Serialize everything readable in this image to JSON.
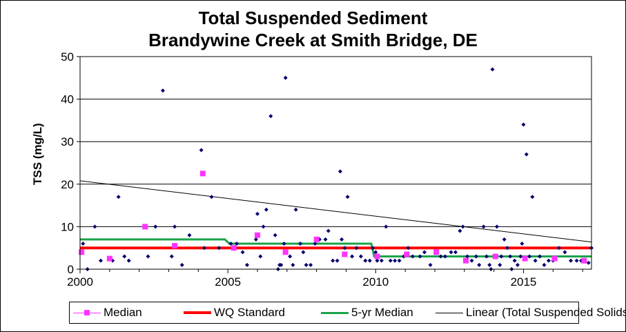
{
  "chart_data": {
    "type": "scatter",
    "title": [
      "Total Suspended Sediment",
      "Brandywine Creek at Smith Bridge, DE"
    ],
    "ylabel": "TSS (mg/L)",
    "xlabel": "",
    "xlim": [
      2000,
      2017.3
    ],
    "ylim": [
      0,
      50
    ],
    "x_ticks": [
      "2000",
      "2005",
      "2010",
      "2015"
    ],
    "x_tick_values": [
      2000,
      2005,
      2010,
      2015
    ],
    "y_ticks": [
      "0",
      "10",
      "20",
      "30",
      "40",
      "50"
    ],
    "y_tick_values": [
      0,
      10,
      20,
      30,
      40,
      50
    ],
    "grid": "horizontal",
    "legend_position": "bottom",
    "series": [
      {
        "name": "Total Suspended Solids",
        "kind": "points",
        "color": "#00006e",
        "show_in_legend": false,
        "points": [
          [
            2000.1,
            6
          ],
          [
            2000.25,
            0
          ],
          [
            2000.5,
            10
          ],
          [
            2000.7,
            2
          ],
          [
            2001.0,
            2.5
          ],
          [
            2001.1,
            2
          ],
          [
            2001.3,
            17
          ],
          [
            2001.5,
            3
          ],
          [
            2001.65,
            2
          ],
          [
            2002.2,
            10
          ],
          [
            2002.3,
            3
          ],
          [
            2002.55,
            10
          ],
          [
            2002.8,
            42
          ],
          [
            2003.1,
            3
          ],
          [
            2003.2,
            10
          ],
          [
            2003.45,
            1
          ],
          [
            2003.7,
            8
          ],
          [
            2004.1,
            28
          ],
          [
            2004.2,
            5
          ],
          [
            2004.45,
            17
          ],
          [
            2004.7,
            5
          ],
          [
            2005.1,
            6
          ],
          [
            2005.3,
            6
          ],
          [
            2005.5,
            4
          ],
          [
            2005.65,
            1
          ],
          [
            2005.95,
            7
          ],
          [
            2006.0,
            13
          ],
          [
            2006.1,
            3
          ],
          [
            2006.2,
            10
          ],
          [
            2006.3,
            14
          ],
          [
            2006.45,
            36
          ],
          [
            2006.6,
            8
          ],
          [
            2006.7,
            0
          ],
          [
            2006.75,
            1
          ],
          [
            2006.8,
            1
          ],
          [
            2006.9,
            6
          ],
          [
            2006.95,
            45
          ],
          [
            2007.1,
            3
          ],
          [
            2007.2,
            1
          ],
          [
            2007.3,
            14
          ],
          [
            2007.45,
            6
          ],
          [
            2007.55,
            4
          ],
          [
            2007.65,
            1
          ],
          [
            2007.8,
            1
          ],
          [
            2007.95,
            6
          ],
          [
            2008.1,
            7
          ],
          [
            2008.3,
            7
          ],
          [
            2008.4,
            9
          ],
          [
            2008.55,
            2
          ],
          [
            2008.7,
            2
          ],
          [
            2008.8,
            23
          ],
          [
            2008.85,
            7
          ],
          [
            2008.95,
            5
          ],
          [
            2009.05,
            17
          ],
          [
            2009.2,
            3
          ],
          [
            2009.35,
            5
          ],
          [
            2009.5,
            3
          ],
          [
            2009.65,
            2
          ],
          [
            2009.8,
            2
          ],
          [
            2009.9,
            5
          ],
          [
            2010.0,
            4
          ],
          [
            2010.05,
            2
          ],
          [
            2010.2,
            2
          ],
          [
            2010.35,
            10
          ],
          [
            2010.5,
            2
          ],
          [
            2010.65,
            2
          ],
          [
            2010.8,
            2
          ],
          [
            2010.95,
            3
          ],
          [
            2011.1,
            5
          ],
          [
            2011.25,
            3
          ],
          [
            2011.5,
            3
          ],
          [
            2011.65,
            4
          ],
          [
            2011.85,
            1
          ],
          [
            2012.05,
            4
          ],
          [
            2012.2,
            3
          ],
          [
            2012.35,
            3
          ],
          [
            2012.55,
            4
          ],
          [
            2012.7,
            4
          ],
          [
            2012.85,
            9
          ],
          [
            2012.95,
            10
          ],
          [
            2013.1,
            3
          ],
          [
            2013.25,
            2
          ],
          [
            2013.4,
            3
          ],
          [
            2013.5,
            1
          ],
          [
            2013.65,
            10
          ],
          [
            2013.75,
            3
          ],
          [
            2013.85,
            1
          ],
          [
            2013.9,
            0
          ],
          [
            2013.95,
            47
          ],
          [
            2014.1,
            10
          ],
          [
            2014.2,
            1
          ],
          [
            2014.25,
            3
          ],
          [
            2014.35,
            7
          ],
          [
            2014.45,
            5
          ],
          [
            2014.55,
            3
          ],
          [
            2014.6,
            0
          ],
          [
            2014.7,
            2
          ],
          [
            2014.8,
            1
          ],
          [
            2014.9,
            3
          ],
          [
            2014.95,
            6
          ],
          [
            2015.0,
            34
          ],
          [
            2015.1,
            27
          ],
          [
            2015.2,
            3
          ],
          [
            2015.3,
            17
          ],
          [
            2015.4,
            2
          ],
          [
            2015.55,
            3
          ],
          [
            2015.7,
            1
          ],
          [
            2015.85,
            2
          ],
          [
            2016.0,
            2
          ],
          [
            2016.2,
            5
          ],
          [
            2016.4,
            4
          ],
          [
            2016.6,
            2
          ],
          [
            2016.8,
            2
          ],
          [
            2016.95,
            2
          ],
          [
            2017.05,
            2
          ],
          [
            2017.2,
            1.5
          ],
          [
            2017.3,
            5
          ]
        ]
      },
      {
        "name": "Median",
        "kind": "squares",
        "color": "#ff33ff",
        "points": [
          [
            2000.05,
            4
          ],
          [
            2001.0,
            2.5
          ],
          [
            2002.2,
            10
          ],
          [
            2003.2,
            5.5
          ],
          [
            2004.15,
            22.5
          ],
          [
            2005.2,
            5
          ],
          [
            2006.0,
            8
          ],
          [
            2006.95,
            4
          ],
          [
            2008.0,
            7
          ],
          [
            2008.95,
            3.5
          ],
          [
            2010.05,
            3
          ],
          [
            2011.05,
            3.5
          ],
          [
            2012.05,
            4
          ],
          [
            2013.05,
            2
          ],
          [
            2014.05,
            3
          ],
          [
            2015.05,
            2.5
          ],
          [
            2016.05,
            2.5
          ],
          [
            2017.05,
            2
          ]
        ]
      },
      {
        "name": "WQ Standard",
        "kind": "line",
        "color": "#ff0000",
        "points": [
          [
            2000,
            5
          ],
          [
            2017.3,
            5
          ]
        ]
      },
      {
        "name": "5-yr Median",
        "kind": "line",
        "color": "#1aa34a",
        "points": [
          [
            2000,
            7
          ],
          [
            2004.9,
            7
          ],
          [
            2005.05,
            6
          ],
          [
            2009.85,
            6
          ],
          [
            2009.95,
            3
          ],
          [
            2017.3,
            3
          ]
        ]
      },
      {
        "name": "Linear (Total Suspended Solids)",
        "kind": "trend",
        "color": "#000000",
        "points": [
          [
            2000,
            20.8
          ],
          [
            2017.3,
            6.4
          ]
        ]
      }
    ]
  },
  "legend": {
    "median": "Median",
    "wq": "WQ Standard",
    "five_yr": "5-yr Median",
    "linear": "Linear (Total Suspended Solids)"
  }
}
